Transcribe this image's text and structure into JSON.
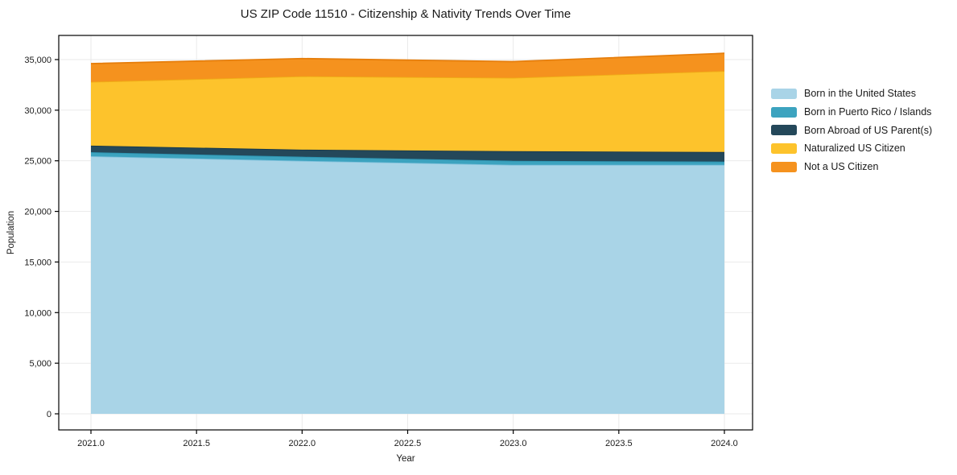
{
  "chart_data": {
    "type": "area",
    "stacked": true,
    "title": "US ZIP Code 11510 - Citizenship & Nativity Trends Over Time",
    "xlabel": "Year",
    "ylabel": "Population",
    "x": [
      2021,
      2022,
      2023,
      2024
    ],
    "series": [
      {
        "name": "Born in the United States",
        "color": "#A9D4E7",
        "edge_color": "#7FC0DB",
        "values": [
          25450,
          25000,
          24600,
          24600
        ]
      },
      {
        "name": "Born in Puerto Rico / Islands",
        "color": "#3CA3BF",
        "edge_color": "#2D93B0",
        "values": [
          400,
          400,
          400,
          320
        ]
      },
      {
        "name": "Born Abroad of US Parent(s)",
        "color": "#24485A",
        "edge_color": "#18394A",
        "values": [
          650,
          700,
          950,
          950
        ]
      },
      {
        "name": "Naturalized US Citizen",
        "color": "#FDC32C",
        "edge_color": "#EFAC16",
        "values": [
          6300,
          7250,
          7250,
          8000
        ]
      },
      {
        "name": "Not a US Citizen",
        "color": "#F5921E",
        "edge_color": "#E67E0C",
        "values": [
          1800,
          1750,
          1600,
          1750
        ]
      }
    ],
    "xticks": {
      "values": [
        2021.0,
        2021.5,
        2022.0,
        2022.5,
        2023.0,
        2023.5,
        2024.0
      ],
      "labels": [
        "2021.0",
        "2021.5",
        "2022.0",
        "2022.5",
        "2023.0",
        "2023.5",
        "2024.0"
      ]
    },
    "yticks": {
      "values": [
        0,
        5000,
        10000,
        15000,
        20000,
        25000,
        30000,
        35000
      ],
      "labels": [
        "0",
        "5,000",
        "10,000",
        "15,000",
        "20,000",
        "25,000",
        "30,000",
        "35,000"
      ]
    },
    "xlim": [
      2020.84,
      2024.13
    ],
    "ylim": [
      -1500,
      37400
    ],
    "grid": true,
    "grid_color": "#e8e8e8",
    "frame_color": "#000000",
    "legend_position": "right-outside",
    "background": "#ffffff"
  }
}
